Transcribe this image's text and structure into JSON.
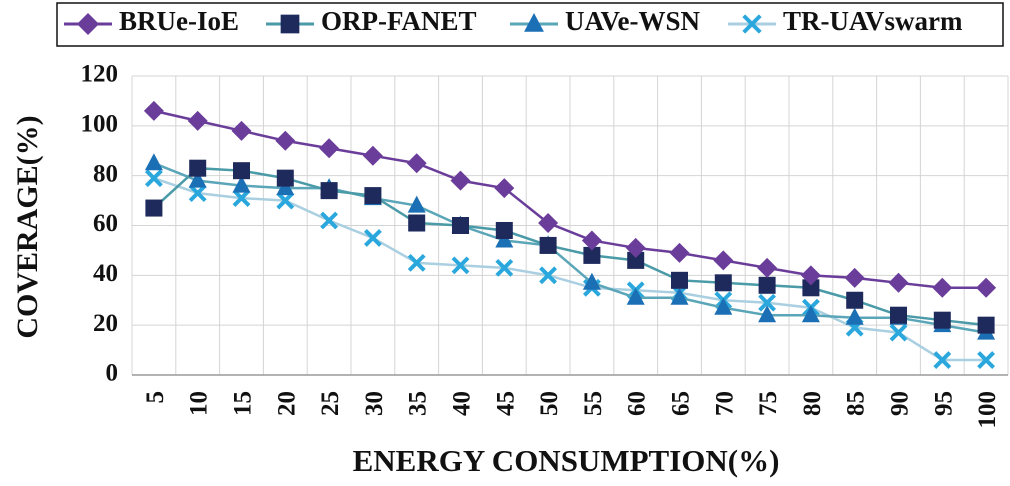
{
  "chart_data": {
    "type": "line",
    "title": "",
    "xlabel": "ENERGY CONSUMPTION(%)",
    "ylabel": "COVERAGE(%)",
    "categories": [
      "5",
      "10",
      "15",
      "20",
      "25",
      "30",
      "35",
      "40",
      "45",
      "50",
      "55",
      "60",
      "65",
      "70",
      "75",
      "80",
      "85",
      "90",
      "95",
      "100"
    ],
    "ylim": [
      0,
      120
    ],
    "yticks": [
      0,
      20,
      40,
      60,
      80,
      100,
      120
    ],
    "grid": true,
    "legend_position": "top",
    "series": [
      {
        "name": "BRUe-IoE",
        "marker": "diamond",
        "color": "#6a3d9a",
        "values": [
          106,
          102,
          98,
          94,
          91,
          88,
          85,
          78,
          75,
          61,
          54,
          51,
          49,
          46,
          43,
          40,
          39,
          37,
          35,
          35
        ]
      },
      {
        "name": "ORP-FANET",
        "marker": "square",
        "color": "#1f2a5c",
        "line_color": "#4a9aa8",
        "values": [
          67,
          83,
          82,
          79,
          74,
          72,
          61,
          60,
          58,
          52,
          48,
          46,
          38,
          37,
          36,
          35,
          30,
          24,
          22,
          20
        ]
      },
      {
        "name": "UAVe-WSN",
        "marker": "triangle",
        "color": "#1b6fb5",
        "line_color": "#5aa6b8",
        "values": [
          85,
          78,
          76,
          75,
          75,
          71,
          68,
          60,
          54,
          52,
          37,
          31,
          31,
          27,
          24,
          24,
          23,
          23,
          20,
          17
        ]
      },
      {
        "name": "TR-UAVswarm",
        "marker": "cross",
        "color": "#2aa7dc",
        "line_color": "#a9cfe0",
        "values": [
          79,
          73,
          71,
          70,
          62,
          55,
          45,
          44,
          43,
          40,
          35,
          34,
          33,
          30,
          29,
          27,
          19,
          17,
          6,
          6
        ]
      }
    ]
  }
}
